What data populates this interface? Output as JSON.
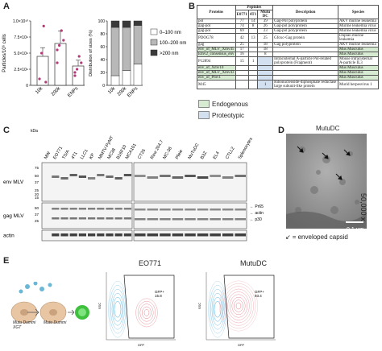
{
  "panels": {
    "A": "A",
    "B": "B",
    "C": "C",
    "D": "D",
    "E": "E"
  },
  "panelA": {
    "chart_data": [
      {
        "type": "bar",
        "categories": [
          "10k",
          "200k",
          "ENPs"
        ],
        "values": [
          4500000000.0,
          6500000000.0,
          3000000000.0
        ],
        "points": [
          [
            1000000000.0,
            5000000000.0,
            9200000000.0,
            500000000.0
          ],
          [
            3500000000.0,
            6200000000.0,
            8500000000.0,
            7000000000.0,
            5500000000.0
          ],
          [
            1500000000.0,
            2500000000.0,
            4500000000.0,
            3500000000.0,
            2000000000.0
          ]
        ],
        "ylabel": "Particles/10⁶ cells",
        "yticks": [
          "0",
          "2.5×10⁹",
          "5.0×10⁹",
          "7.5×10⁹",
          "1.0×10¹⁰"
        ],
        "ylim": [
          0,
          10000000000.0
        ],
        "color": "#b23a7a"
      },
      {
        "type": "bar",
        "stacked": true,
        "categories": [
          "10k",
          "200k",
          "ENPs"
        ],
        "series": [
          {
            "name": "0–100 nm",
            "values": [
              15,
              23,
              33
            ],
            "color": "#ffffff"
          },
          {
            "name": "100–200 nm",
            "values": [
              75,
              67,
              60
            ],
            "color": "#b8b8b8"
          },
          {
            "name": ">200 nm",
            "values": [
              10,
              10,
              7
            ],
            "color": "#3a3a3a"
          }
        ],
        "ylabel": "Distribution of sizes (%)",
        "yticks": [
          "0",
          "20",
          "40",
          "60",
          "80",
          "100"
        ],
        "ylim": [
          0,
          100
        ],
        "legend": "right"
      }
    ]
  },
  "panelB": {
    "headers": [
      "Proteins",
      "Peptides",
      "E0771",
      "4T1",
      "Mutu DC",
      "Description",
      "Species"
    ],
    "rows": [
      {
        "protein": "pol",
        "e": "77",
        "t": "14",
        "m": "39",
        "desc": "Gag-Pol polyprotein",
        "species": "AKV murine leukemia",
        "hl": "",
        "mhl": ""
      },
      {
        "protein": "gag-pol",
        "e": "74",
        "t": "8",
        "m": "26",
        "desc": "Gag-pol polyprotein",
        "species": "Murine leukemia virus",
        "hl": "",
        "mhl": ""
      },
      {
        "protein": "gag-pol",
        "e": "69",
        "t": "",
        "m": "23",
        "desc": "Gag-pol polyprotein",
        "species": "Murine leukemia virus",
        "hl": "",
        "mhl": ""
      },
      {
        "protein": "PDOG78",
        "e": "42",
        "t": "13",
        "m": "25",
        "desc": "Gfoxc-Gag protein",
        "species": "Duplan murine leukemia",
        "hl": "",
        "mhl": ""
      },
      {
        "protein": "gag",
        "e": "25",
        "t": "",
        "m": "18",
        "desc": "Gag polyprotein",
        "species": "AKV murine leukemia",
        "hl": "",
        "mhl": ""
      },
      {
        "protein": "env_of_MLV_Xmv45",
        "e": "17",
        "t": "",
        "m": "18",
        "desc": "",
        "species": "Mus Musculus",
        "hl": "g",
        "mhl": ""
      },
      {
        "protein": "Emv2_consensus_env",
        "e": "16",
        "t": "",
        "m": "8",
        "desc": "",
        "species": "Mus Musculus",
        "hl": "g",
        "mhl": ""
      },
      {
        "protein": "P12894",
        "e": "15",
        "t": "1",
        "m": "",
        "desc": "Intracisternal A-particle Pol-related polyprotein (Fragment)",
        "species": "Mouse intracisternal A-particle IL3",
        "hl": "",
        "mhl": "bl"
      },
      {
        "protein": "env_of_Xmv10",
        "e": "",
        "t": "",
        "m": "",
        "desc": "",
        "species": "Mus Musculus",
        "hl": "g",
        "mhl": "bl"
      },
      {
        "protein": "env_of_MLV_Xmv43",
        "e": "",
        "t": "",
        "m": "",
        "desc": "",
        "species": "Mus Musculus",
        "hl": "g",
        "mhl": "bl"
      },
      {
        "protein": "env_of_Pmv1",
        "e": "",
        "t": "",
        "m": "",
        "desc": "",
        "species": "Mus Musculus",
        "hl": "g",
        "mhl": "bl"
      },
      {
        "protein": "M45",
        "e": "",
        "t": "",
        "m": "1",
        "desc": "Ribonucleoside-diphosphate reductase large subunit-like protein",
        "species": "Murid herpesvirus 1",
        "hl": "",
        "mhl": "bl"
      }
    ],
    "legend": [
      {
        "label": "Endogenous",
        "color": "#d7ead2"
      },
      {
        "label": "Proteotypic",
        "color": "#d3e0f0"
      }
    ]
  },
  "panelC": {
    "kda": "kDa",
    "lanes_left": [
      "MW",
      "EO771",
      "TS/A",
      "4T1",
      "LLC1",
      "KP",
      "MMTV-PyMT",
      "MC38",
      "B16F10",
      "MCA101"
    ],
    "lanes_right": [
      "CT26",
      "Raw 264.7",
      "MC-38",
      "Pfeie",
      "MuTuDC",
      "B3Z",
      "EL4",
      "CTLL2",
      "Splenocytes"
    ],
    "blots": [
      "env MLV",
      "gag MLV",
      "actin"
    ],
    "markers": [
      "75",
      "50",
      "37",
      "25",
      "20",
      "15",
      "50",
      "37",
      "25"
    ],
    "right_labels": [
      "Pr65",
      "actin",
      "p30"
    ]
  },
  "panelD": {
    "title": "MutuDC",
    "magnification": "50,000 x",
    "scale": "0.1 µm",
    "legend": "= enveloped capsid"
  },
  "panelE": {
    "scheme": {
      "label1": "Mutu Dummi XGT",
      "label2": "Mutu Dummi"
    },
    "plots": [
      {
        "title": "EO771",
        "gate": "GFP+",
        "value": "15.8",
        "xlabel": "GFP",
        "ylabel": "SSC"
      },
      {
        "title": "MutuDC",
        "gate": "GFP+",
        "value": "93.4",
        "xlabel": "GFP",
        "ylabel": "SSC"
      }
    ]
  }
}
